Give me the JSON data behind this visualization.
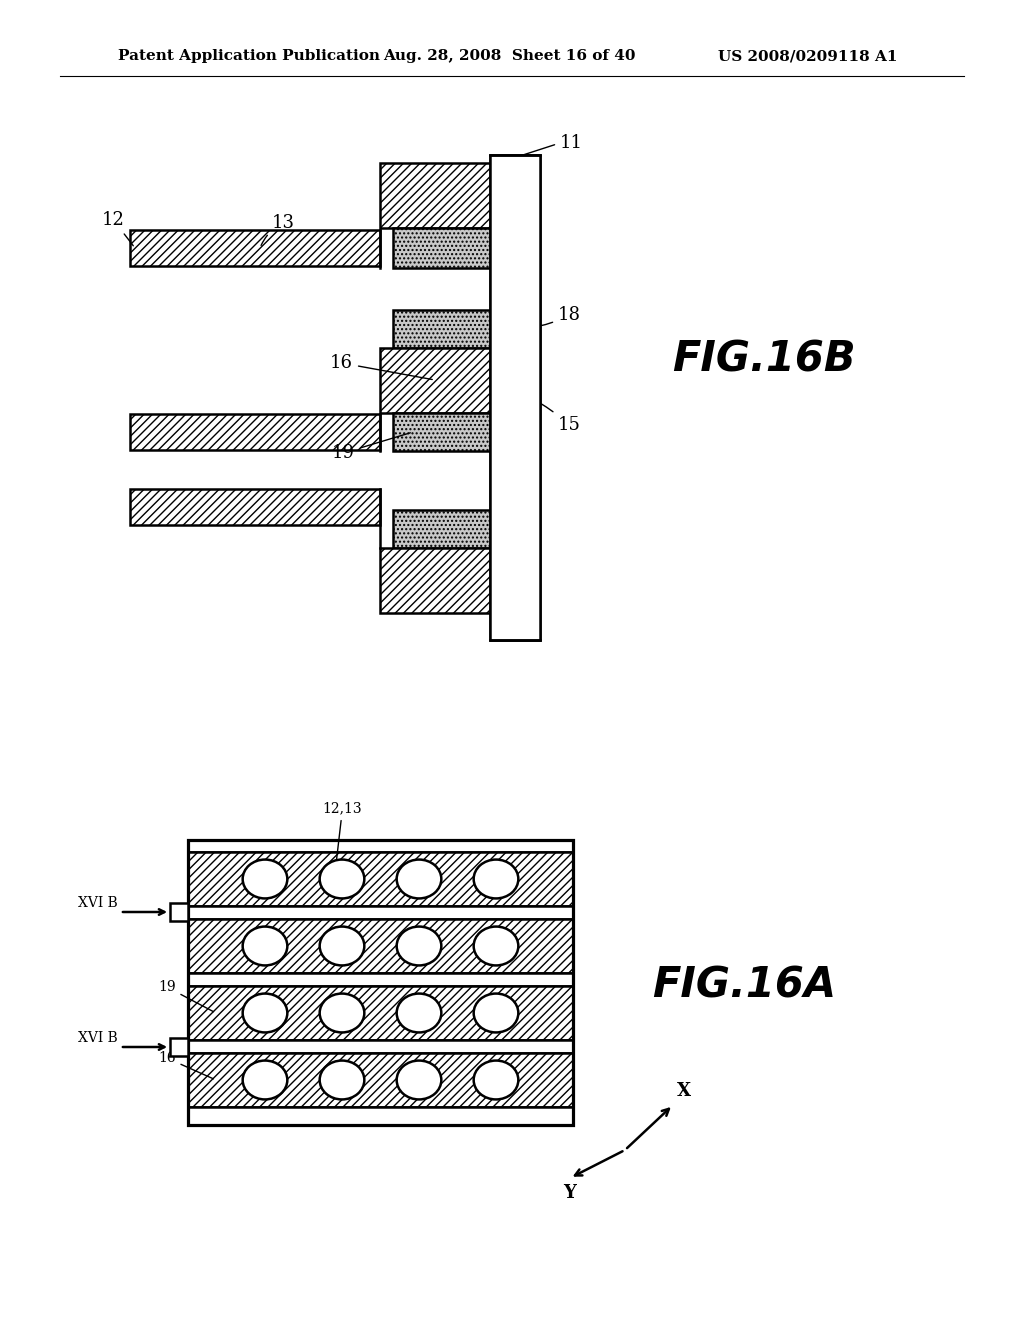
{
  "bg_color": "#ffffff",
  "line_color": "#000000",
  "header_left": "Patent Application Publication",
  "header_mid": "Aug. 28, 2008  Sheet 16 of 40",
  "header_right": "US 2008/0209118 A1",
  "fig16b_label": "FIG.16B",
  "fig16a_label": "FIG.16A",
  "dot_fill": "#c8c8c8",
  "hatch_fill": "#ffffff"
}
